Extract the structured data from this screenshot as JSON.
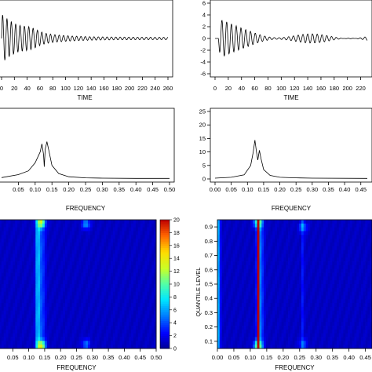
{
  "chart_data": [
    {
      "panel": "top-left",
      "type": "line",
      "xlabel": "TIME",
      "x_ticks": [
        "0",
        "20",
        "40",
        "60",
        "80",
        "100",
        "120",
        "140",
        "160",
        "180",
        "200",
        "220",
        "240",
        "260"
      ],
      "xlim": [
        0,
        260
      ],
      "ylim": [
        -6,
        6
      ],
      "series": [
        {
          "amplitude_start": 4.2,
          "decay_to": 0.2,
          "period": 6.8,
          "points_approx": [
            [
              0,
              0
            ],
            [
              5,
              3.8
            ],
            [
              10,
              -3.9
            ],
            [
              20,
              3.0
            ],
            [
              40,
              2.2
            ],
            [
              60,
              1.2
            ],
            [
              80,
              0.4
            ],
            [
              100,
              0.3
            ],
            [
              140,
              0.25
            ],
            [
              200,
              0.25
            ],
            [
              255,
              0.1
            ]
          ]
        }
      ]
    },
    {
      "panel": "top-right",
      "type": "line",
      "xlabel": "TIME",
      "x_ticks": [
        "0",
        "20",
        "40",
        "60",
        "80",
        "100",
        "120",
        "140",
        "160",
        "180",
        "200",
        "220"
      ],
      "y_ticks": [
        "-6",
        "-4",
        "-2",
        "0",
        "2",
        "4",
        "6"
      ],
      "xlim": [
        0,
        230
      ],
      "ylim": [
        -6,
        6
      ],
      "series": [
        {
          "points_approx": [
            [
              5,
              0
            ],
            [
              10,
              -2.5
            ],
            [
              13,
              3.4
            ],
            [
              16,
              -3.6
            ],
            [
              25,
              2.4
            ],
            [
              40,
              1.9
            ],
            [
              60,
              1.4
            ],
            [
              80,
              0.8
            ],
            [
              100,
              0.9
            ],
            [
              140,
              0.5
            ],
            [
              200,
              0.4
            ],
            [
              230,
              0.3
            ]
          ]
        }
      ]
    },
    {
      "panel": "middle-left",
      "type": "line",
      "xlabel": "FREQUENCY",
      "x_ticks": [
        "0.05",
        "0.10",
        "0.15",
        "0.20",
        "0.25",
        "0.30",
        "0.35",
        "0.40",
        "0.45",
        "0.50"
      ],
      "xlim": [
        0,
        0.5
      ],
      "ylim": [
        0,
        25
      ],
      "series": [
        {
          "points": [
            [
              0.0,
              0.5
            ],
            [
              0.05,
              1.6
            ],
            [
              0.08,
              3.0
            ],
            [
              0.1,
              6.0
            ],
            [
              0.115,
              10.0
            ],
            [
              0.12,
              13.0
            ],
            [
              0.125,
              9.0
            ],
            [
              0.127,
              4.5
            ],
            [
              0.13,
              11.0
            ],
            [
              0.135,
              13.8
            ],
            [
              0.14,
              11.0
            ],
            [
              0.15,
              5.0
            ],
            [
              0.17,
              2.0
            ],
            [
              0.2,
              0.8
            ],
            [
              0.25,
              0.4
            ],
            [
              0.3,
              0.3
            ],
            [
              0.4,
              0.2
            ],
            [
              0.5,
              0.2
            ]
          ]
        }
      ]
    },
    {
      "panel": "middle-right",
      "type": "line",
      "xlabel": "FREQUENCY",
      "x_ticks": [
        "0.00",
        "0.05",
        "0.10",
        "0.15",
        "0.20",
        "0.25",
        "0.30",
        "0.35",
        "0.40",
        "0.45"
      ],
      "y_ticks": [
        "0",
        "5",
        "10",
        "15",
        "20",
        "25"
      ],
      "xlim": [
        0,
        0.47
      ],
      "ylim": [
        0,
        25
      ],
      "series": [
        {
          "points": [
            [
              0.0,
              0.3
            ],
            [
              0.05,
              0.6
            ],
            [
              0.09,
              1.5
            ],
            [
              0.11,
              5.0
            ],
            [
              0.118,
              10.0
            ],
            [
              0.123,
              14.4
            ],
            [
              0.128,
              10.0
            ],
            [
              0.132,
              7.0
            ],
            [
              0.137,
              10.6
            ],
            [
              0.142,
              7.5
            ],
            [
              0.15,
              3.5
            ],
            [
              0.17,
              1.3
            ],
            [
              0.2,
              0.6
            ],
            [
              0.25,
              0.4
            ],
            [
              0.3,
              0.3
            ],
            [
              0.47,
              0.2
            ]
          ]
        }
      ]
    },
    {
      "panel": "bottom-left",
      "type": "heatmap",
      "xlabel": "FREQUENCY",
      "x_ticks": [
        "0.05",
        "0.10",
        "0.15",
        "0.20",
        "0.25",
        "0.30",
        "0.35",
        "0.40",
        "0.45",
        "0.50"
      ],
      "xlim": [
        0,
        0.5
      ],
      "ylim": [
        0.05,
        0.95
      ],
      "colorbar": {
        "ticks": [
          "0",
          "2",
          "4",
          "6",
          "8",
          "10",
          "12",
          "14",
          "16",
          "18",
          "20"
        ],
        "range": [
          0,
          20
        ]
      },
      "ridges": [
        {
          "center": 0.128,
          "width": 0.006,
          "value": 5.5
        },
        {
          "center": 0.14,
          "width": 0.012,
          "value": 3.0
        }
      ],
      "hotspots": [
        {
          "x": 0.14,
          "y": 0.93,
          "value": 9
        },
        {
          "x": 0.14,
          "y": 0.07,
          "value": 10
        },
        {
          "x": 0.28,
          "y": 0.92,
          "value": 5
        },
        {
          "x": 0.28,
          "y": 0.08,
          "value": 4
        }
      ]
    },
    {
      "panel": "bottom-right",
      "type": "heatmap",
      "xlabel": "FREQUENCY",
      "ylabel": "QUANTILE LEVEL",
      "x_ticks": [
        "0.00",
        "0.05",
        "0.10",
        "0.15",
        "0.20",
        "0.25",
        "0.30",
        "0.35",
        "0.40",
        "0.45"
      ],
      "y_ticks": [
        "0.1",
        "0.2",
        "0.3",
        "0.4",
        "0.5",
        "0.6",
        "0.7",
        "0.8",
        "0.9"
      ],
      "xlim": [
        0,
        0.47
      ],
      "ylim": [
        0.05,
        0.95
      ],
      "ridges": [
        {
          "center": 0.005,
          "width": 0.004,
          "value": 6.0
        },
        {
          "center": 0.123,
          "width": 0.003,
          "value": 20.0
        },
        {
          "center": 0.13,
          "width": 0.01,
          "value": 4.0
        },
        {
          "center": 0.26,
          "width": 0.004,
          "value": 2.0
        }
      ],
      "hotspots": [
        {
          "x": 0.123,
          "y": 0.93,
          "value": 8
        },
        {
          "x": 0.123,
          "y": 0.07,
          "value": 9
        },
        {
          "x": 0.26,
          "y": 0.9,
          "value": 4
        },
        {
          "x": 0.26,
          "y": 0.08,
          "value": 3
        }
      ]
    }
  ]
}
